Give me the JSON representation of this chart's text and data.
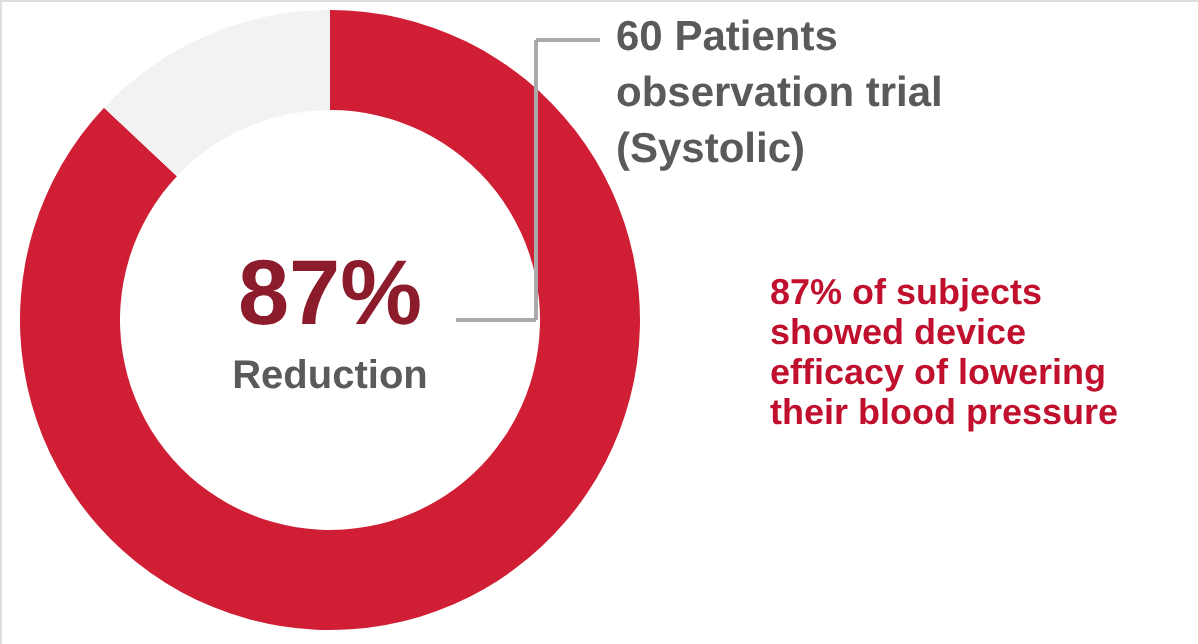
{
  "chart_data": {
    "type": "donut",
    "categories": [
      null,
      null
    ],
    "values": [
      87,
      13
    ],
    "colors": [
      "#d01f35",
      "#f2f2f2"
    ],
    "value_labels": [
      "87%",
      null
    ],
    "annotations": [
      "Reduction",
      "60 Patients\nobservation trial\n(Systolic)",
      "87% of subjects\nshowed device\nefficacy of lowering\ntheir blood pressure"
    ]
  }
}
